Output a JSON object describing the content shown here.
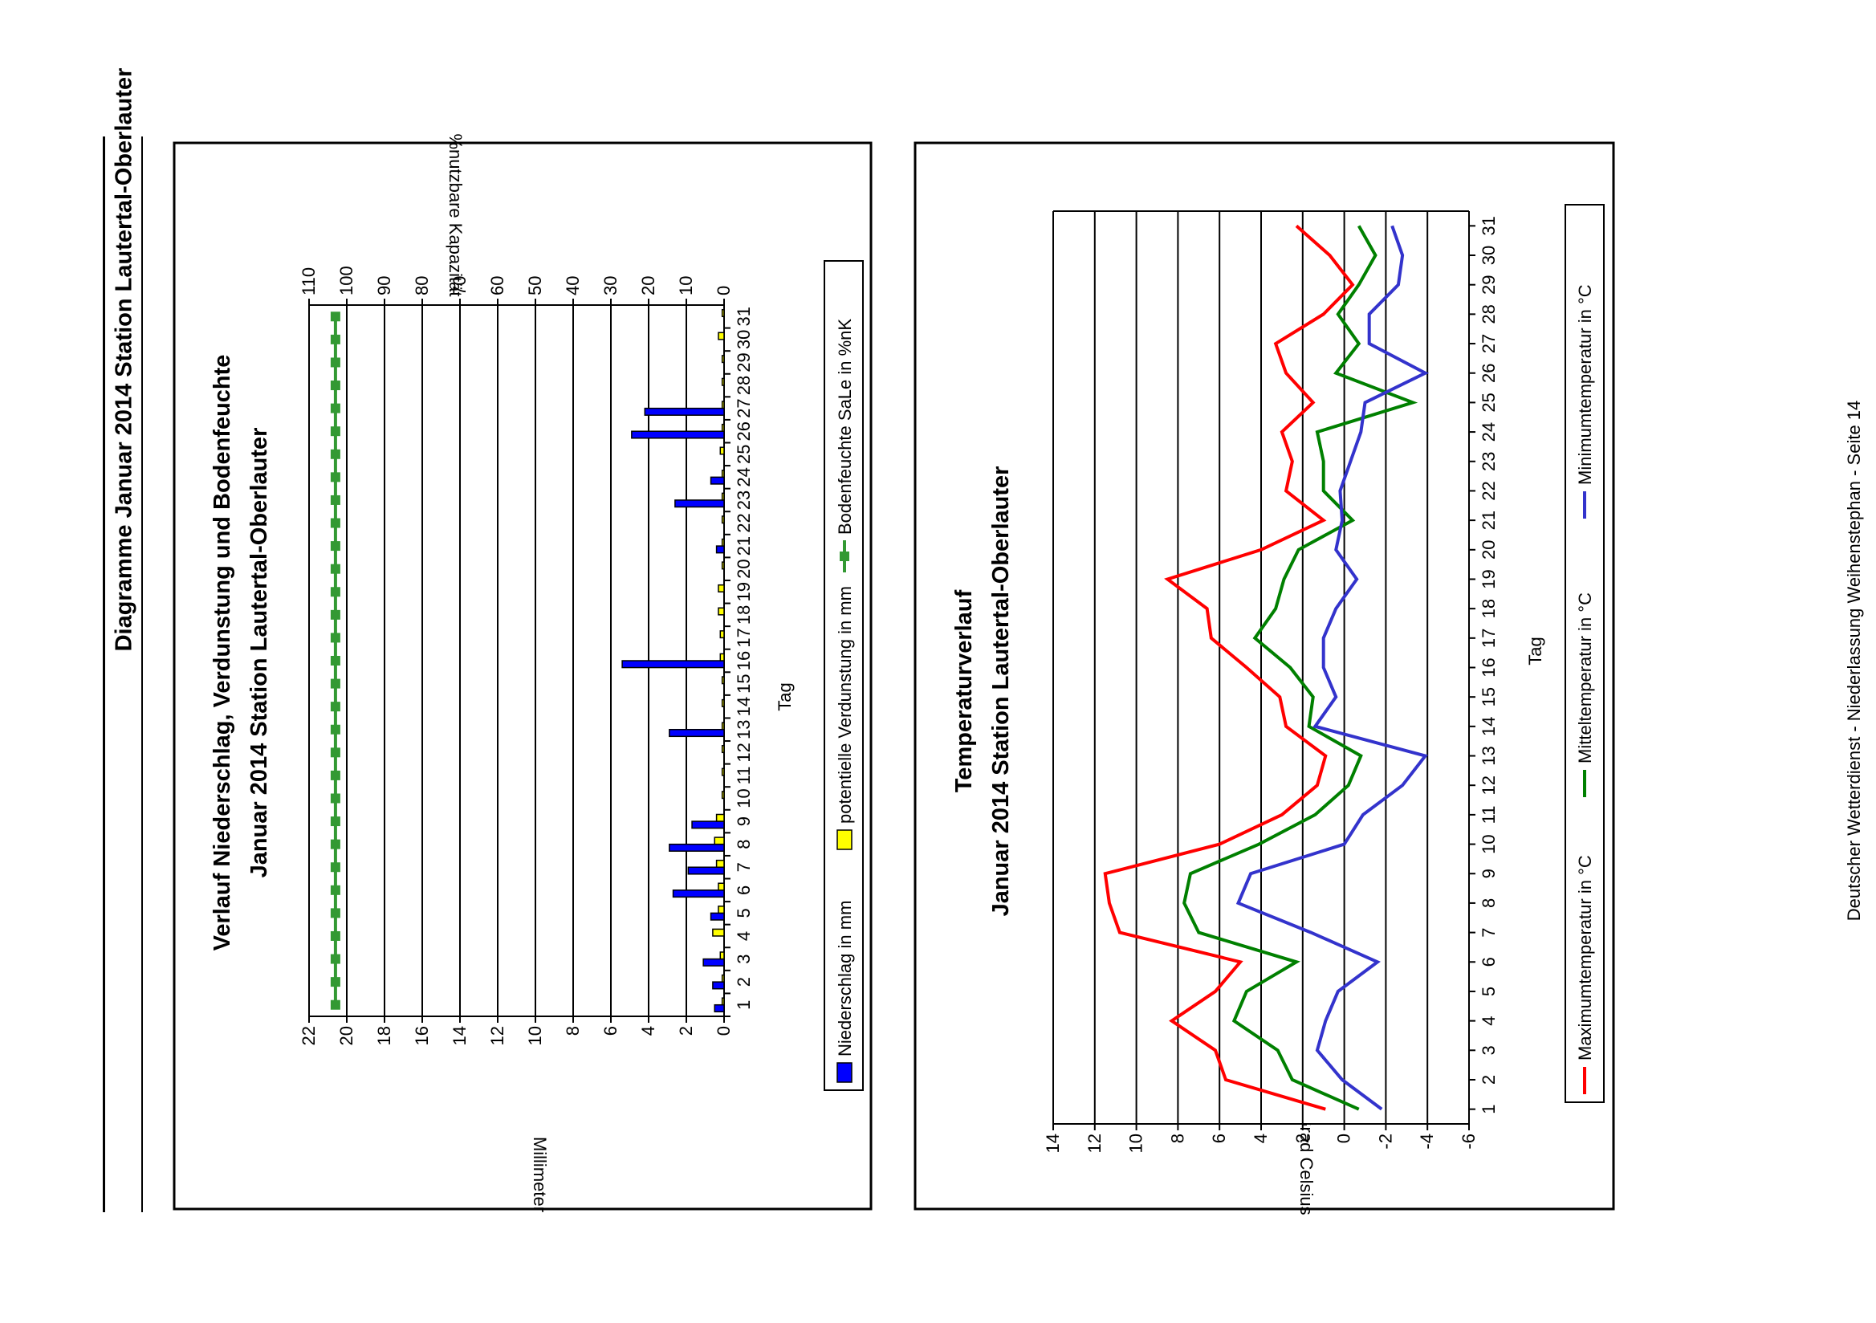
{
  "page": {
    "title": "Diagramme Januar 2014 Station Lautertal-Oberlauter",
    "footer": "Deutscher Wetterdienst - Niederlassung Weihenstephan - Seite 14"
  },
  "chart_data": [
    {
      "type": "bar",
      "title": "Verlauf Niederschlag, Verdunstung und Bodenfeuchte",
      "subtitle": "Januar 2014 Station Lautertal-Oberlauter",
      "xlabel": "Tag",
      "ylabel": "Millimeter",
      "y2label": "%nutzbare Kapazität",
      "ylim": [
        0,
        22
      ],
      "y2lim": [
        0,
        110
      ],
      "yticks": [
        0,
        2,
        4,
        6,
        8,
        10,
        12,
        14,
        16,
        18,
        20,
        22
      ],
      "y2ticks": [
        0,
        10,
        20,
        30,
        40,
        50,
        60,
        70,
        80,
        90,
        100,
        110
      ],
      "grid": true,
      "legend_position": "bottom",
      "categories": [
        "1",
        "2",
        "3",
        "4",
        "5",
        "6",
        "7",
        "8",
        "9",
        "10",
        "11",
        "12",
        "13",
        "14",
        "15",
        "16",
        "17",
        "18",
        "19",
        "20",
        "21",
        "22",
        "23",
        "24",
        "25",
        "26",
        "27",
        "28",
        "29",
        "30",
        "31"
      ],
      "series": [
        {
          "name": "Niederschlag in mm",
          "kind": "bar",
          "axis": "left",
          "color": "#0000ff",
          "values": [
            0.5,
            0.6,
            1.1,
            0,
            0.7,
            2.7,
            1.9,
            2.9,
            1.7,
            0,
            0,
            0,
            2.9,
            0,
            0,
            5.4,
            0,
            0,
            0,
            0,
            0.4,
            0,
            2.6,
            0.7,
            0,
            4.9,
            4.2,
            0,
            0,
            0,
            0
          ]
        },
        {
          "name": "potentielle Verdunstung in mm",
          "kind": "bar",
          "axis": "left",
          "color": "#ffff00",
          "values": [
            0.1,
            0.1,
            0.2,
            0.6,
            0.3,
            0.3,
            0.4,
            0.5,
            0.4,
            0.1,
            0.1,
            0.1,
            0.1,
            0.1,
            0.1,
            0.2,
            0.2,
            0.3,
            0.3,
            0.1,
            0.1,
            0.1,
            0.1,
            0.1,
            0.2,
            0.1,
            0.1,
            0.1,
            0.1,
            0.3,
            0.1
          ]
        },
        {
          "name": "Bodenfeuchte SaLe in %nK",
          "kind": "line",
          "axis": "right",
          "color": "#339933",
          "values": [
            103,
            103,
            103,
            103,
            103,
            103,
            103,
            103,
            103,
            103,
            103,
            103,
            103,
            103,
            103,
            103,
            103,
            103,
            103,
            103,
            103,
            103,
            103,
            103,
            103,
            103,
            103,
            103,
            103,
            103,
            103
          ]
        }
      ]
    },
    {
      "type": "line",
      "title": "Temperaturverlauf",
      "subtitle": "Januar 2014 Station Lautertal-Oberlauter",
      "xlabel": "Tag",
      "ylabel": "Grad Celsius",
      "ylim": [
        -6,
        14
      ],
      "yticks": [
        -6,
        -4,
        -2,
        0,
        2,
        4,
        6,
        8,
        10,
        12,
        14
      ],
      "grid": true,
      "legend_position": "bottom",
      "categories": [
        "1",
        "2",
        "3",
        "4",
        "5",
        "6",
        "7",
        "8",
        "9",
        "10",
        "11",
        "12",
        "13",
        "14",
        "15",
        "16",
        "17",
        "18",
        "19",
        "20",
        "21",
        "22",
        "23",
        "24",
        "25",
        "26",
        "27",
        "28",
        "29",
        "30",
        "31"
      ],
      "series": [
        {
          "name": "Maximumtemperatur in °C",
          "color": "#ff0000",
          "values": [
            0.9,
            5.7,
            6.2,
            8.3,
            6.2,
            5.0,
            10.8,
            11.3,
            11.5,
            6.0,
            3.0,
            1.3,
            0.9,
            2.8,
            3.1,
            4.7,
            6.4,
            6.6,
            8.5,
            4.0,
            1.0,
            2.8,
            2.5,
            3.0,
            1.5,
            2.8,
            3.3,
            1.0,
            -0.4,
            0.7,
            2.3
          ]
        },
        {
          "name": "Mitteltemperatur in °C",
          "color": "#008000",
          "values": [
            -0.7,
            2.5,
            3.2,
            5.3,
            4.7,
            2.3,
            7.0,
            7.7,
            7.4,
            4.1,
            1.4,
            -0.2,
            -0.8,
            1.7,
            1.5,
            2.6,
            4.3,
            3.3,
            2.9,
            2.2,
            -0.4,
            1.0,
            1.0,
            1.3,
            -3.3,
            0.4,
            -0.7,
            0.3,
            -0.7,
            -1.5,
            -0.7
          ]
        },
        {
          "name": "Minimumtemperatur in °C",
          "color": "#3333cc",
          "values": [
            -1.8,
            0.1,
            1.3,
            0.9,
            0.3,
            -1.6,
            1.6,
            5.1,
            4.5,
            0.0,
            -0.9,
            -2.8,
            -3.9,
            1.4,
            0.4,
            1.0,
            1.0,
            0.4,
            -0.6,
            0.4,
            0.1,
            0.2,
            -0.3,
            -0.8,
            -1.0,
            -3.9,
            -1.2,
            -1.2,
            -2.6,
            -2.8,
            -2.3
          ]
        }
      ]
    }
  ]
}
